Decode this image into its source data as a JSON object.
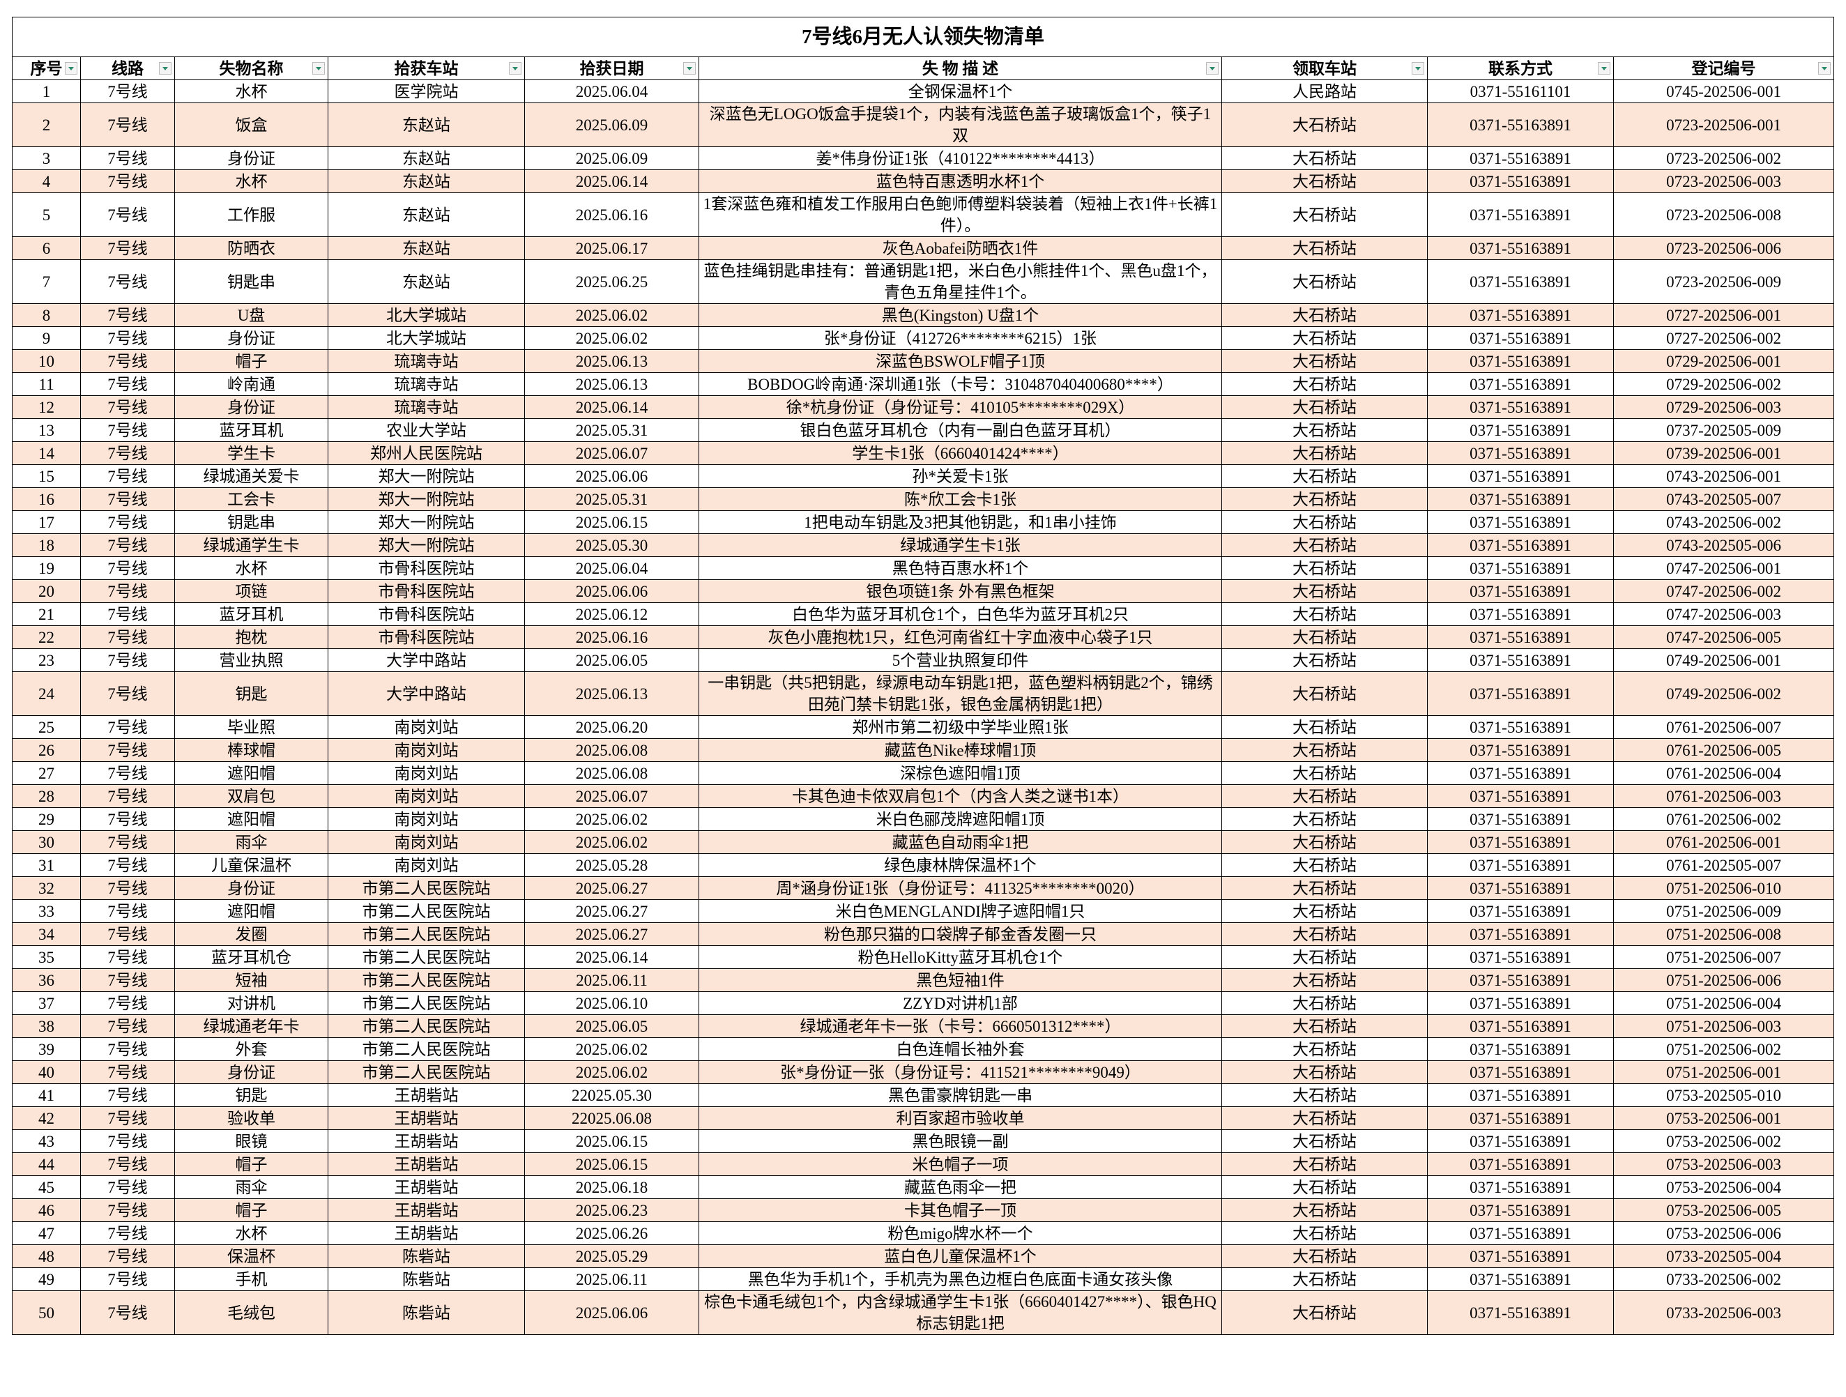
{
  "header": {
    "title": "7号线6月无人认领失物清单"
  },
  "table": {
    "columns": [
      "序号",
      "线路",
      "失物名称",
      "拾获车站",
      "拾获日期",
      "失 物 描 述",
      "领取车站",
      "联系方式",
      "登记编号"
    ],
    "rows": [
      [
        "1",
        "7号线",
        "水杯",
        "医学院站",
        "2025.06.04",
        "全钢保温杯1个",
        "人民路站",
        "0371-55161101",
        "0745-202506-001"
      ],
      [
        "2",
        "7号线",
        "饭盒",
        "东赵站",
        "2025.06.09",
        "深蓝色无LOGO饭盒手提袋1个，内装有浅蓝色盖子玻璃饭盒1个，筷子1双",
        "大石桥站",
        "0371-55163891",
        "0723-202506-001"
      ],
      [
        "3",
        "7号线",
        "身份证",
        "东赵站",
        "2025.06.09",
        "姜*伟身份证1张（410122********4413）",
        "大石桥站",
        "0371-55163891",
        "0723-202506-002"
      ],
      [
        "4",
        "7号线",
        "水杯",
        "东赵站",
        "2025.06.14",
        "蓝色特百惠透明水杯1个",
        "大石桥站",
        "0371-55163891",
        "0723-202506-003"
      ],
      [
        "5",
        "7号线",
        "工作服",
        "东赵站",
        "2025.06.16",
        "1套深蓝色雍和植发工作服用白色鲍师傅塑料袋装着（短袖上衣1件+长裤1件）。",
        "大石桥站",
        "0371-55163891",
        "0723-202506-008"
      ],
      [
        "6",
        "7号线",
        "防晒衣",
        "东赵站",
        "2025.06.17",
        "灰色Aobafei防晒衣1件",
        "大石桥站",
        "0371-55163891",
        "0723-202506-006"
      ],
      [
        "7",
        "7号线",
        "钥匙串",
        "东赵站",
        "2025.06.25",
        "蓝色挂绳钥匙串挂有：普通钥匙1把，米白色小熊挂件1个、黑色u盘1个，青色五角星挂件1个。",
        "大石桥站",
        "0371-55163891",
        "0723-202506-009"
      ],
      [
        "8",
        "7号线",
        "U盘",
        "北大学城站",
        "2025.06.02",
        "黑色(Kingston) U盘1个",
        "大石桥站",
        "0371-55163891",
        "0727-202506-001"
      ],
      [
        "9",
        "7号线",
        "身份证",
        "北大学城站",
        "2025.06.02",
        "张*身份证（412726********6215）1张",
        "大石桥站",
        "0371-55163891",
        "0727-202506-002"
      ],
      [
        "10",
        "7号线",
        "帽子",
        "琉璃寺站",
        "2025.06.13",
        "深蓝色BSWOLF帽子1顶",
        "大石桥站",
        "0371-55163891",
        "0729-202506-001"
      ],
      [
        "11",
        "7号线",
        "岭南通",
        "琉璃寺站",
        "2025.06.13",
        "BOBDOG岭南通·深圳通1张（卡号：310487040400680****）",
        "大石桥站",
        "0371-55163891",
        "0729-202506-002"
      ],
      [
        "12",
        "7号线",
        "身份证",
        "琉璃寺站",
        "2025.06.14",
        "徐*杭身份证（身份证号：410105********029X）",
        "大石桥站",
        "0371-55163891",
        "0729-202506-003"
      ],
      [
        "13",
        "7号线",
        "蓝牙耳机",
        "农业大学站",
        "2025.05.31",
        "银白色蓝牙耳机仓（内有一副白色蓝牙耳机）",
        "大石桥站",
        "0371-55163891",
        "0737-202505-009"
      ],
      [
        "14",
        "7号线",
        "学生卡",
        "郑州人民医院站",
        "2025.06.07",
        "学生卡1张（6660401424****）",
        "大石桥站",
        "0371-55163891",
        "0739-202506-001"
      ],
      [
        "15",
        "7号线",
        "绿城通关爱卡",
        "郑大一附院站",
        "2025.06.06",
        "孙*关爱卡1张",
        "大石桥站",
        "0371-55163891",
        "0743-202506-001"
      ],
      [
        "16",
        "7号线",
        "工会卡",
        "郑大一附院站",
        "2025.05.31",
        "陈*欣工会卡1张",
        "大石桥站",
        "0371-55163891",
        "0743-202505-007"
      ],
      [
        "17",
        "7号线",
        "钥匙串",
        "郑大一附院站",
        "2025.06.15",
        "1把电动车钥匙及3把其他钥匙，和1串小挂饰",
        "大石桥站",
        "0371-55163891",
        "0743-202506-002"
      ],
      [
        "18",
        "7号线",
        "绿城通学生卡",
        "郑大一附院站",
        "2025.05.30",
        "绿城通学生卡1张",
        "大石桥站",
        "0371-55163891",
        "0743-202505-006"
      ],
      [
        "19",
        "7号线",
        "水杯",
        "市骨科医院站",
        "2025.06.04",
        "黑色特百惠水杯1个",
        "大石桥站",
        "0371-55163891",
        "0747-202506-001"
      ],
      [
        "20",
        "7号线",
        "项链",
        "市骨科医院站",
        "2025.06.06",
        "银色项链1条 外有黑色框架",
        "大石桥站",
        "0371-55163891",
        "0747-202506-002"
      ],
      [
        "21",
        "7号线",
        "蓝牙耳机",
        "市骨科医院站",
        "2025.06.12",
        "白色华为蓝牙耳机仓1个，白色华为蓝牙耳机2只",
        "大石桥站",
        "0371-55163891",
        "0747-202506-003"
      ],
      [
        "22",
        "7号线",
        "抱枕",
        "市骨科医院站",
        "2025.06.16",
        "灰色小鹿抱枕1只，红色河南省红十字血液中心袋子1只",
        "大石桥站",
        "0371-55163891",
        "0747-202506-005"
      ],
      [
        "23",
        "7号线",
        "营业执照",
        "大学中路站",
        "2025.06.05",
        "5个营业执照复印件",
        "大石桥站",
        "0371-55163891",
        "0749-202506-001"
      ],
      [
        "24",
        "7号线",
        "钥匙",
        "大学中路站",
        "2025.06.13",
        "一串钥匙（共5把钥匙，绿源电动车钥匙1把，蓝色塑料柄钥匙2个，锦绣田苑门禁卡钥匙1张，银色金属柄钥匙1把）",
        "大石桥站",
        "0371-55163891",
        "0749-202506-002"
      ],
      [
        "25",
        "7号线",
        "毕业照",
        "南岗刘站",
        "2025.06.20",
        "郑州市第二初级中学毕业照1张",
        "大石桥站",
        "0371-55163891",
        "0761-202506-007"
      ],
      [
        "26",
        "7号线",
        "棒球帽",
        "南岗刘站",
        "2025.06.08",
        "藏蓝色Nike棒球帽1顶",
        "大石桥站",
        "0371-55163891",
        "0761-202506-005"
      ],
      [
        "27",
        "7号线",
        "遮阳帽",
        "南岗刘站",
        "2025.06.08",
        "深棕色遮阳帽1顶",
        "大石桥站",
        "0371-55163891",
        "0761-202506-004"
      ],
      [
        "28",
        "7号线",
        "双肩包",
        "南岗刘站",
        "2025.06.07",
        "卡其色迪卡侬双肩包1个（内含人类之谜书1本）",
        "大石桥站",
        "0371-55163891",
        "0761-202506-003"
      ],
      [
        "29",
        "7号线",
        "遮阳帽",
        "南岗刘站",
        "2025.06.02",
        "米白色郦茂牌遮阳帽1顶",
        "大石桥站",
        "0371-55163891",
        "0761-202506-002"
      ],
      [
        "30",
        "7号线",
        "雨伞",
        "南岗刘站",
        "2025.06.02",
        "藏蓝色自动雨伞1把",
        "大石桥站",
        "0371-55163891",
        "0761-202506-001"
      ],
      [
        "31",
        "7号线",
        "儿童保温杯",
        "南岗刘站",
        "2025.05.28",
        "绿色康林牌保温杯1个",
        "大石桥站",
        "0371-55163891",
        "0761-202505-007"
      ],
      [
        "32",
        "7号线",
        "身份证",
        "市第二人民医院站",
        "2025.06.27",
        "周*涵身份证1张（身份证号：411325********0020）",
        "大石桥站",
        "0371-55163891",
        "0751-202506-010"
      ],
      [
        "33",
        "7号线",
        "遮阳帽",
        "市第二人民医院站",
        "2025.06.27",
        "米白色MENGLANDI牌子遮阳帽1只",
        "大石桥站",
        "0371-55163891",
        "0751-202506-009"
      ],
      [
        "34",
        "7号线",
        "发圈",
        "市第二人民医院站",
        "2025.06.27",
        "粉色那只猫的口袋牌子郁金香发圈一只",
        "大石桥站",
        "0371-55163891",
        "0751-202506-008"
      ],
      [
        "35",
        "7号线",
        "蓝牙耳机仓",
        "市第二人民医院站",
        "2025.06.14",
        "粉色HelloKitty蓝牙耳机仓1个",
        "大石桥站",
        "0371-55163891",
        "0751-202506-007"
      ],
      [
        "36",
        "7号线",
        "短袖",
        "市第二人民医院站",
        "2025.06.11",
        "黑色短袖1件",
        "大石桥站",
        "0371-55163891",
        "0751-202506-006"
      ],
      [
        "37",
        "7号线",
        "对讲机",
        "市第二人民医院站",
        "2025.06.10",
        "ZZYD对讲机1部",
        "大石桥站",
        "0371-55163891",
        "0751-202506-004"
      ],
      [
        "38",
        "7号线",
        "绿城通老年卡",
        "市第二人民医院站",
        "2025.06.05",
        "绿城通老年卡一张（卡号：6660501312****）",
        "大石桥站",
        "0371-55163891",
        "0751-202506-003"
      ],
      [
        "39",
        "7号线",
        "外套",
        "市第二人民医院站",
        "2025.06.02",
        "白色连帽长袖外套",
        "大石桥站",
        "0371-55163891",
        "0751-202506-002"
      ],
      [
        "40",
        "7号线",
        "身份证",
        "市第二人民医院站",
        "2025.06.02",
        "张*身份证一张（身份证号：411521********9049）",
        "大石桥站",
        "0371-55163891",
        "0751-202506-001"
      ],
      [
        "41",
        "7号线",
        "钥匙",
        "王胡砦站",
        "22025.05.30",
        "黑色雷豪牌钥匙一串",
        "大石桥站",
        "0371-55163891",
        "0753-202505-010"
      ],
      [
        "42",
        "7号线",
        "验收单",
        "王胡砦站",
        "22025.06.08",
        "利百家超市验收单",
        "大石桥站",
        "0371-55163891",
        "0753-202506-001"
      ],
      [
        "43",
        "7号线",
        "眼镜",
        "王胡砦站",
        "2025.06.15",
        "黑色眼镜一副",
        "大石桥站",
        "0371-55163891",
        "0753-202506-002"
      ],
      [
        "44",
        "7号线",
        "帽子",
        "王胡砦站",
        "2025.06.15",
        "米色帽子一项",
        "大石桥站",
        "0371-55163891",
        "0753-202506-003"
      ],
      [
        "45",
        "7号线",
        "雨伞",
        "王胡砦站",
        "2025.06.18",
        "藏蓝色雨伞一把",
        "大石桥站",
        "0371-55163891",
        "0753-202506-004"
      ],
      [
        "46",
        "7号线",
        "帽子",
        "王胡砦站",
        "2025.06.23",
        "卡其色帽子一顶",
        "大石桥站",
        "0371-55163891",
        "0753-202506-005"
      ],
      [
        "47",
        "7号线",
        "水杯",
        "王胡砦站",
        "2025.06.26",
        "粉色migo牌水杯一个",
        "大石桥站",
        "0371-55163891",
        "0753-202506-006"
      ],
      [
        "48",
        "7号线",
        "保温杯",
        "陈砦站",
        "2025.05.29",
        "蓝白色儿童保温杯1个",
        "大石桥站",
        "0371-55163891",
        "0733-202505-004"
      ],
      [
        "49",
        "7号线",
        "手机",
        "陈砦站",
        "2025.06.11",
        "黑色华为手机1个，手机壳为黑色边框白色底面卡通女孩头像",
        "大石桥站",
        "0371-55163891",
        "0733-202506-002"
      ],
      [
        "50",
        "7号线",
        "毛绒包",
        "陈砦站",
        "2025.06.06",
        "棕色卡通毛绒包1个，内含绿城通学生卡1张（6660401427****）、银色HQ标志钥匙1把",
        "大石桥站",
        "0371-55163891",
        "0733-202506-003"
      ]
    ]
  }
}
